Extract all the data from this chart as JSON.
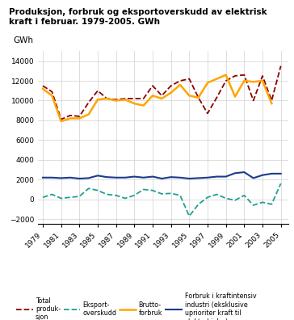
{
  "years": [
    1979,
    1980,
    1981,
    1982,
    1983,
    1984,
    1985,
    1986,
    1987,
    1988,
    1989,
    1990,
    1991,
    1992,
    1993,
    1994,
    1995,
    1996,
    1997,
    1998,
    1999,
    2000,
    2001,
    2002,
    2003,
    2004,
    2005
  ],
  "total_produksjon": [
    11500,
    10900,
    8100,
    8500,
    8400,
    9800,
    11000,
    10200,
    10100,
    10200,
    10200,
    10200,
    11500,
    10500,
    11500,
    12000,
    12200,
    10300,
    8700,
    10300,
    12000,
    12500,
    12600,
    10000,
    12500,
    10000,
    13500
  ],
  "eksport_overskudd": [
    200,
    500,
    100,
    200,
    300,
    1100,
    900,
    500,
    400,
    100,
    400,
    1000,
    900,
    550,
    600,
    400,
    -1700,
    -500,
    200,
    500,
    100,
    -100,
    400,
    -600,
    -300,
    -500,
    1600
  ],
  "brutto_forbruk": [
    11200,
    10500,
    7900,
    8200,
    8200,
    8600,
    10100,
    10200,
    10000,
    10100,
    9700,
    9500,
    10500,
    10200,
    10800,
    11600,
    10500,
    10300,
    11800,
    12200,
    12600,
    10400,
    12000,
    11900,
    12000,
    9700,
    null
  ],
  "kraftintensiv_industri": [
    2200,
    2200,
    2150,
    2200,
    2100,
    2150,
    2400,
    2250,
    2200,
    2200,
    2300,
    2200,
    2300,
    2100,
    2250,
    2200,
    2100,
    2150,
    2200,
    2300,
    2300,
    2650,
    2750,
    2150,
    2450,
    2600,
    2600
  ],
  "title_line1": "Produksjon, forbruk og eksportoverskudd av elektrisk",
  "title_line2": "kraft i februar. 1979-2005. GWh",
  "ylabel": "GWh",
  "ylim": [
    -2500,
    15000
  ],
  "yticks": [
    -2000,
    0,
    2000,
    4000,
    6000,
    8000,
    10000,
    12000,
    14000
  ],
  "colors": {
    "total_produksjon": "#8B0000",
    "eksport_overskudd": "#20A090",
    "brutto_forbruk": "#FFA500",
    "kraftintensiv_industri": "#1C3A8C"
  },
  "legend_labels": {
    "total_produksjon": "Total\nproduk-\nsjon",
    "eksport_overskudd": "Eksport-\noverskudd",
    "brutto_forbruk": "Brutto-\nforbruk",
    "kraftintensiv_industri": "Forbruk i kraftintensiv\nindustri (eksklusive\nuprioriter kraft til\nelektrokjeler)"
  }
}
